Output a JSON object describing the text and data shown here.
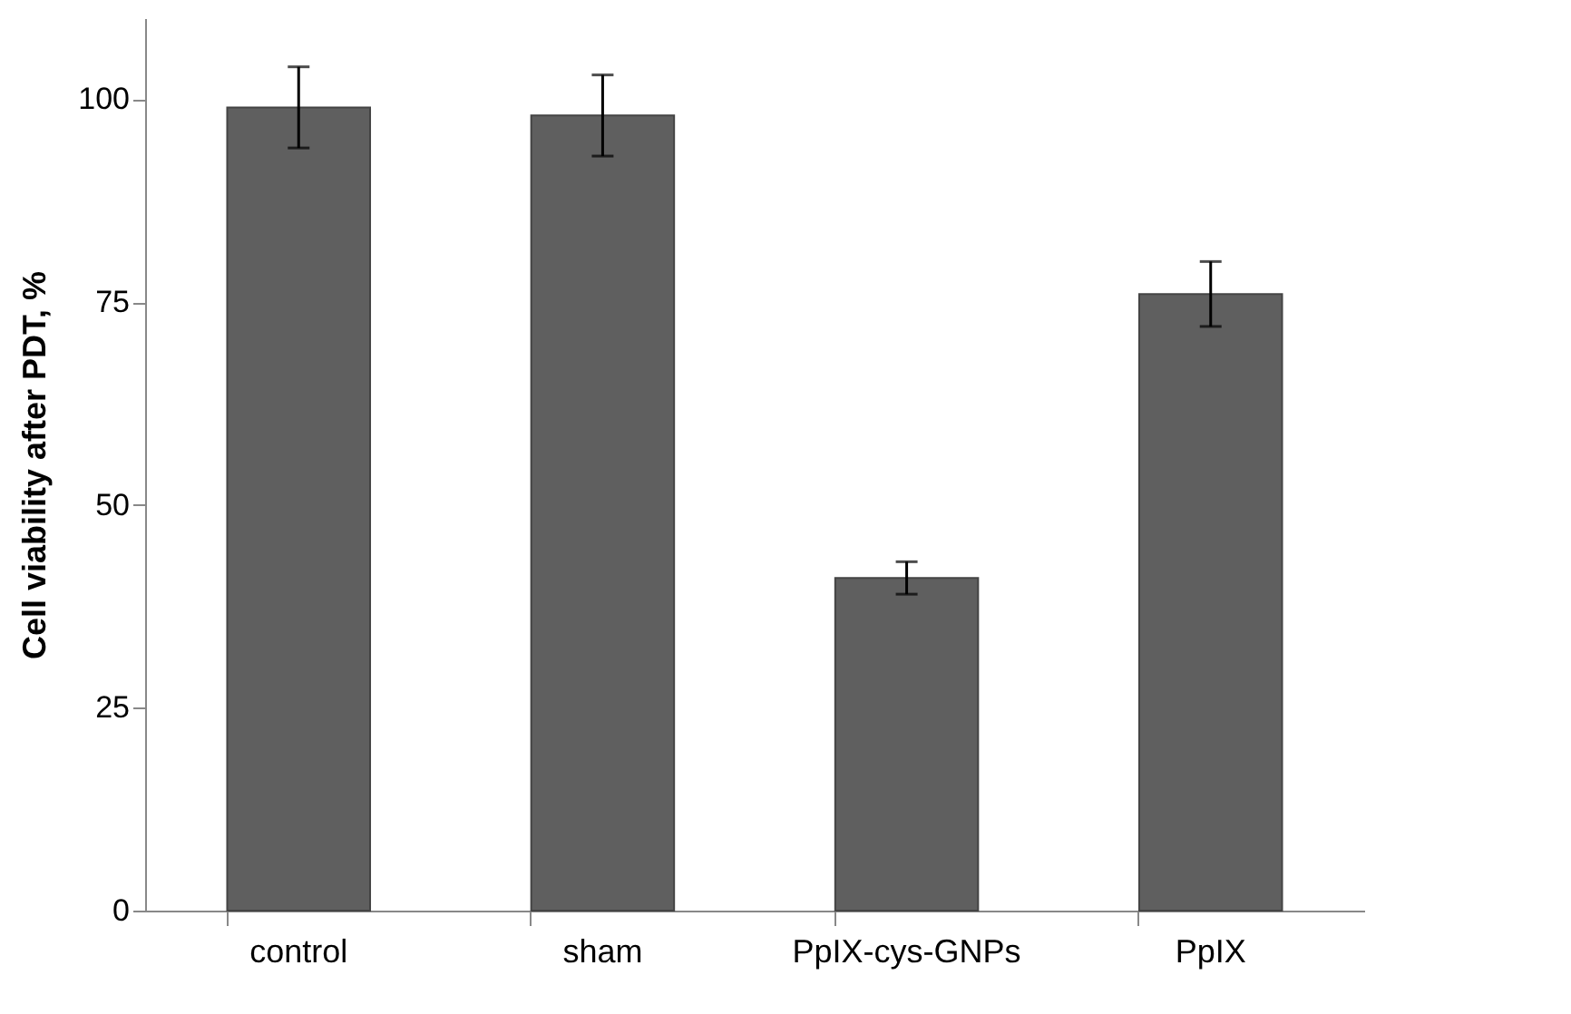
{
  "chart_data": {
    "type": "bar",
    "ylabel": "Cell viability after PDT, %",
    "categories": [
      "control",
      "sham",
      "PpIX-cys-GNPs",
      "PpIX"
    ],
    "values": [
      99,
      98,
      41,
      76
    ],
    "color": "#5f5f5f",
    "errors": [
      5,
      5,
      2,
      4
    ],
    "ylim": [
      0,
      110
    ],
    "yticks": [
      0,
      25,
      50,
      75,
      100
    ],
    "grid": false
  }
}
